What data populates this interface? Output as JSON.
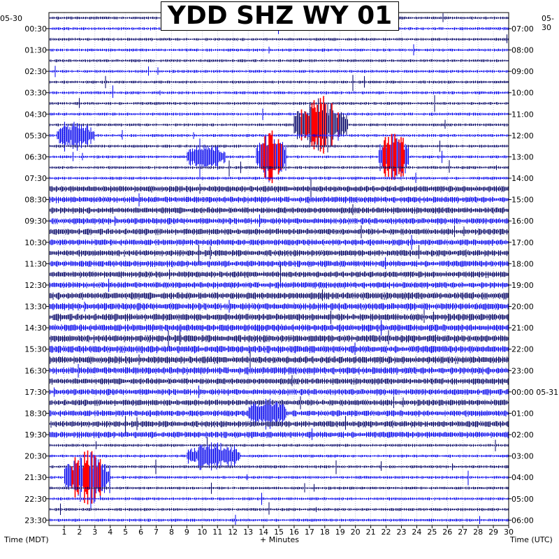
{
  "header": {
    "title": "YDD SHZ WY 01"
  },
  "corner_left_date": "05-30",
  "corner_right_date": "05-30",
  "axis_titles": {
    "left": "Time (MDT)",
    "bottom": "+ Minutes",
    "right": "Time (UTC)"
  },
  "colors": {
    "trace_dark": "#000066",
    "trace_blue": "#0000ee",
    "clip": "#ff0000",
    "grid": "#9999bb",
    "background": "#ffffff"
  },
  "chart_data": {
    "type": "helicorder",
    "title": "YDD SHZ WY 01",
    "xlabel": "+ Minutes",
    "xlim": [
      0,
      30
    ],
    "x_ticks": [
      "1",
      "2",
      "3",
      "4",
      "5",
      "6",
      "7",
      "8",
      "9",
      "10",
      "11",
      "12",
      "13",
      "14",
      "15",
      "16",
      "17",
      "18",
      "19",
      "20",
      "21",
      "22",
      "23",
      "24",
      "25",
      "26",
      "27",
      "28",
      "29",
      "30"
    ],
    "row_minutes": 30,
    "rows": 48,
    "left_labels": [
      "00:30",
      "01:30",
      "02:30",
      "03:30",
      "04:30",
      "05:30",
      "06:30",
      "07:30",
      "08:30",
      "09:30",
      "10:30",
      "11:30",
      "12:30",
      "13:30",
      "14:30",
      "15:30",
      "16:30",
      "17:30",
      "18:30",
      "19:30",
      "20:30",
      "21:30",
      "22:30",
      "23:30"
    ],
    "right_labels": [
      "07:00",
      "08:00",
      "09:00",
      "10:00",
      "11:00",
      "12:00",
      "13:00",
      "14:00",
      "15:00",
      "16:00",
      "17:00",
      "18:00",
      "19:00",
      "20:00",
      "21:00",
      "22:00",
      "23:00",
      "00:00 05-31",
      "01:00",
      "02:00",
      "03:00",
      "04:00",
      "05:00",
      "06:00"
    ],
    "left_axis_label": "Time (MDT)",
    "right_axis_label": "Time (UTC)",
    "series_colors_cycle": [
      "dark navy",
      "blue"
    ],
    "events": [
      {
        "time": "05:30",
        "minute_start": 0.5,
        "minute_end": 3.0,
        "type": "burst"
      },
      {
        "time": "06:30",
        "minute_start": 9.0,
        "minute_end": 11.5,
        "type": "burst"
      },
      {
        "time": "06:30",
        "minute_start": 13.5,
        "minute_end": 15.5,
        "type": "clipped"
      },
      {
        "time": "05:00",
        "minute_start": 16.0,
        "minute_end": 19.5,
        "type": "clipped"
      },
      {
        "time": "06:30",
        "minute_start": 21.5,
        "minute_end": 23.5,
        "type": "clipped"
      },
      {
        "time": "18:30",
        "minute_start": 13.0,
        "minute_end": 15.5,
        "type": "burst"
      },
      {
        "time": "20:30",
        "minute_start": 9.0,
        "minute_end": 12.5,
        "type": "burst"
      },
      {
        "time": "21:30",
        "minute_start": 1.0,
        "minute_end": 4.0,
        "type": "clipped"
      }
    ]
  }
}
